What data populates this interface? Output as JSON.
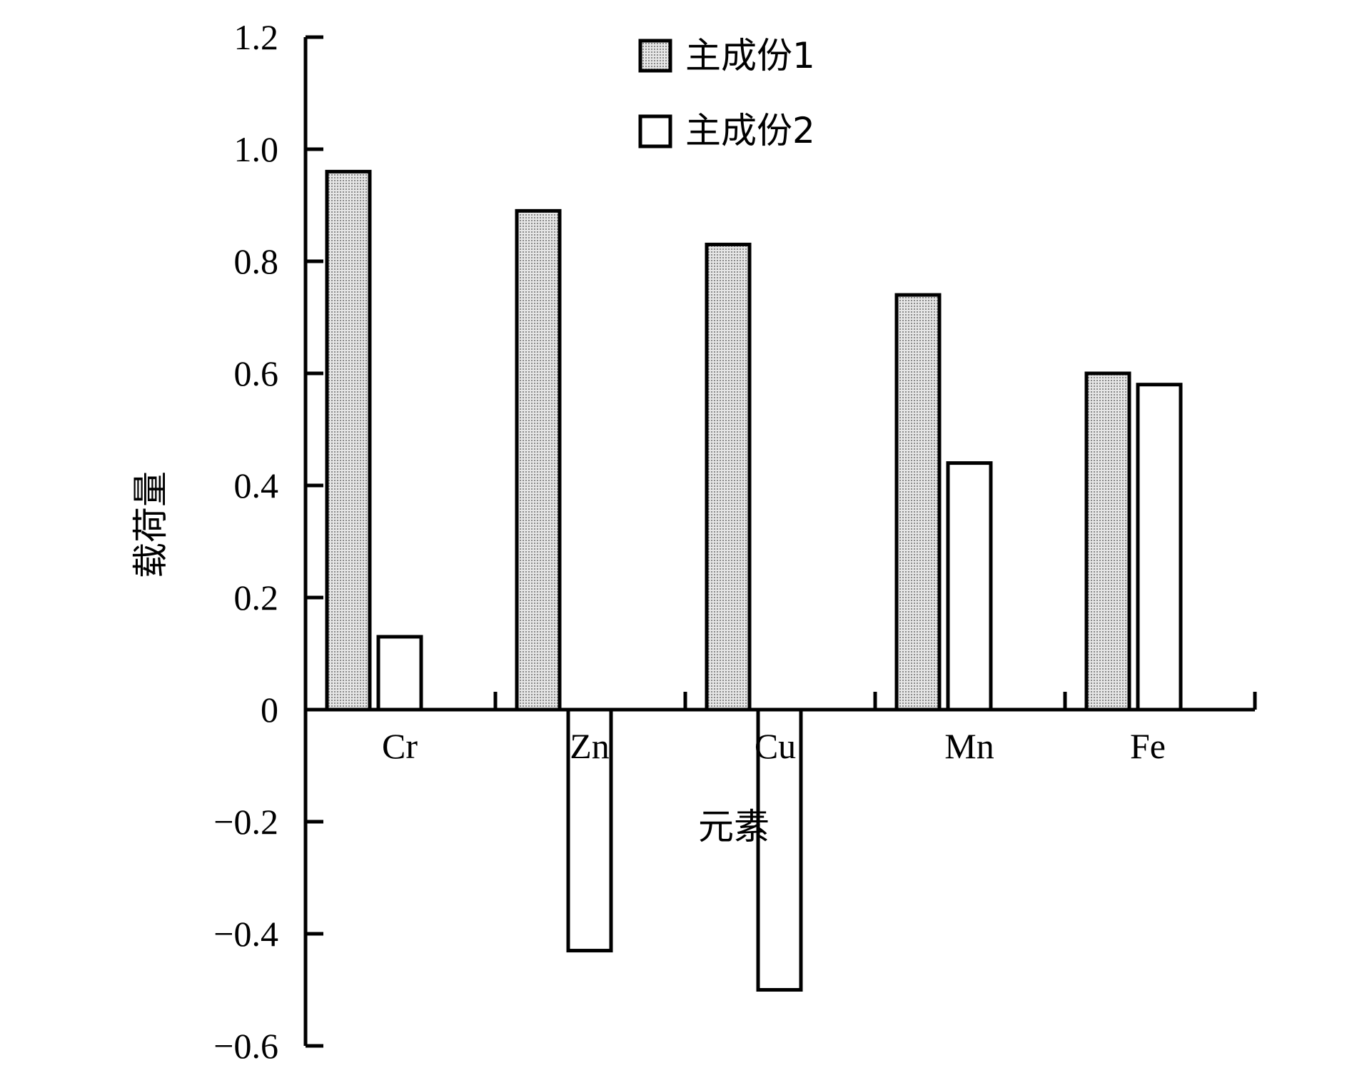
{
  "chart_data": {
    "type": "bar",
    "categories": [
      "Cr",
      "Zn",
      "Cu",
      "Mn",
      "Fe"
    ],
    "series": [
      {
        "name": "主成份1",
        "values": [
          0.96,
          0.89,
          0.83,
          0.74,
          0.6
        ],
        "fill": "#d4d4d4",
        "pattern": "dotted"
      },
      {
        "name": "主成份2",
        "values": [
          0.13,
          -0.43,
          -0.5,
          0.44,
          0.58
        ],
        "fill": "#ffffff"
      }
    ],
    "xlabel": "元素",
    "ylabel": "载荷量",
    "ylim": [
      -0.6,
      1.2
    ],
    "yticks": [
      1.2,
      1.0,
      0.8,
      0.6,
      0.4,
      0.2,
      0,
      -0.2,
      -0.4,
      -0.6
    ],
    "ytick_labels": [
      "1.2",
      "1.0",
      "0.8",
      "0.6",
      "0.4",
      "0.2",
      "0",
      "−0.2",
      "−0.4",
      "−0.6"
    ],
    "grid": false,
    "legend_position": "top-center"
  }
}
